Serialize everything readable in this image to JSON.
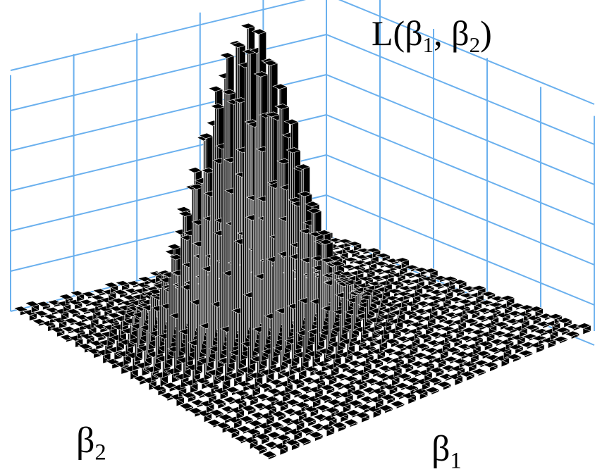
{
  "chart_data": {
    "type": "3d-bar",
    "zlabel": {
      "sym1": "L(β",
      "s1": "1",
      "sep": ", β",
      "s2": "2",
      "close": ")"
    },
    "xlabel": {
      "sym": "β",
      "sub": "1"
    },
    "ylabel": {
      "sym": "β",
      "sub": "2"
    },
    "grid": true,
    "colors": {
      "grid": "#6ab0ee",
      "low_bar": "#b8662a",
      "high_bar": "#f2cc18",
      "bar_outline": "#ffffff"
    },
    "surface": {
      "shape": "single central peak on a nearly flat floor",
      "grid_size": [
        28,
        28
      ],
      "peak_cell": [
        11,
        11
      ],
      "peak_height": 1.0,
      "floor_height": 0.02
    }
  }
}
